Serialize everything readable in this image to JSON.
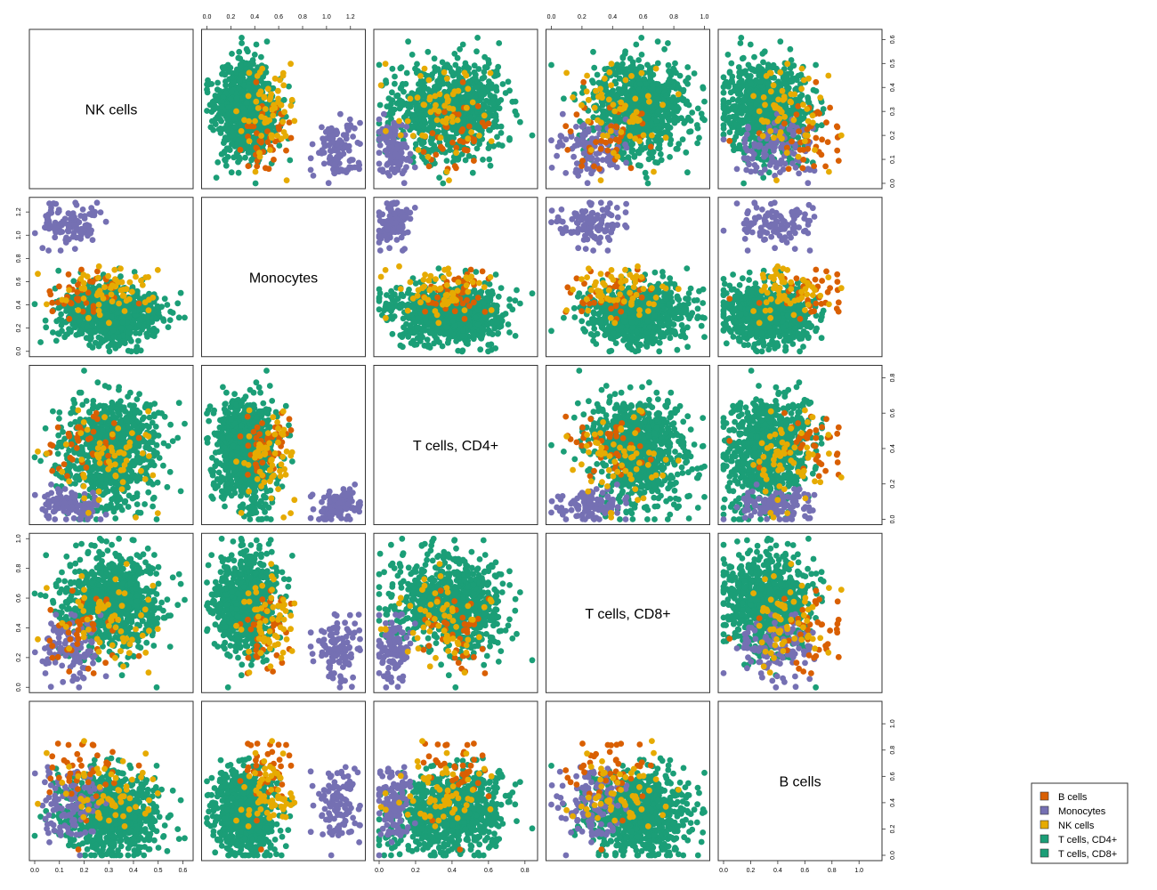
{
  "chart_data": {
    "type": "scatter",
    "title": "",
    "variables": [
      "NK cells",
      "Monocytes",
      "T cells, CD4+",
      "T cells, CD8+",
      "B cells"
    ],
    "ranges": {
      "NK cells": [
        0,
        0.62
      ],
      "Monocytes": [
        0,
        1.28
      ],
      "T cells, CD4+": [
        0,
        0.84
      ],
      "T cells, CD8+": [
        0,
        1.0
      ],
      "B cells": [
        0,
        1.13
      ]
    },
    "axes": {
      "top": [
        {
          "variable": "Monocytes",
          "ticks": [
            "0.0",
            "0.2",
            "0.4",
            "0.6",
            "0.8",
            "1.0",
            "1.2"
          ]
        },
        {
          "variable": "T cells, CD8+",
          "ticks": [
            "0.0",
            "0.2",
            "0.4",
            "0.6",
            "0.8",
            "1.0"
          ]
        }
      ],
      "bottom": [
        {
          "variable": "NK cells",
          "ticks": [
            "0.0",
            "0.1",
            "0.2",
            "0.3",
            "0.4",
            "0.5",
            "0.6"
          ]
        },
        {
          "variable": "T cells, CD4+",
          "ticks": [
            "0.0",
            "0.2",
            "0.4",
            "0.6",
            "0.8"
          ]
        },
        {
          "variable": "B cells",
          "ticks": [
            "0.0",
            "0.2",
            "0.4",
            "0.6",
            "0.8",
            "1.0"
          ]
        }
      ],
      "left": [
        {
          "variable": "Monocytes",
          "ticks": [
            "0.0",
            "0.2",
            "0.4",
            "0.6",
            "0.8",
            "1.0",
            "1.2"
          ]
        },
        {
          "variable": "T cells, CD8+",
          "ticks": [
            "0.0",
            "0.2",
            "0.4",
            "0.6",
            "0.8",
            "1.0"
          ]
        }
      ],
      "right": [
        {
          "variable": "NK cells",
          "ticks": [
            "0.0",
            "0.1",
            "0.2",
            "0.3",
            "0.4",
            "0.5",
            "0.6"
          ]
        },
        {
          "variable": "T cells, CD4+",
          "ticks": [
            "0.0",
            "0.2",
            "0.4",
            "0.6",
            "0.8"
          ]
        },
        {
          "variable": "B cells",
          "ticks": [
            "0.0",
            "0.2",
            "0.4",
            "0.6",
            "0.8",
            "1.0"
          ]
        }
      ]
    },
    "groups": [
      {
        "name": "B cells",
        "color": "#D95F02",
        "center": {
          "NK cells": 0.2,
          "Monocytes": 0.5,
          "T cells, CD4+": 0.42,
          "T cells, CD8+": 0.38,
          "B cells": 0.65
        },
        "spread": {
          "NK cells": 0.08,
          "Monocytes": 0.12,
          "T cells, CD4+": 0.12,
          "T cells, CD8+": 0.15,
          "B cells": 0.15
        }
      },
      {
        "name": "Monocytes",
        "color": "#7570B3",
        "center": {
          "NK cells": 0.15,
          "Monocytes": 1.1,
          "T cells, CD4+": 0.08,
          "T cells, CD8+": 0.25,
          "B cells": 0.38
        },
        "spread": {
          "NK cells": 0.06,
          "Monocytes": 0.1,
          "T cells, CD4+": 0.05,
          "T cells, CD8+": 0.1,
          "B cells": 0.15
        }
      },
      {
        "name": "NK cells",
        "color": "#E6AB02",
        "center": {
          "NK cells": 0.3,
          "Monocytes": 0.52,
          "T cells, CD4+": 0.35,
          "T cells, CD8+": 0.45,
          "B cells": 0.45
        },
        "spread": {
          "NK cells": 0.1,
          "Monocytes": 0.1,
          "T cells, CD4+": 0.15,
          "T cells, CD8+": 0.15,
          "B cells": 0.15
        }
      },
      {
        "name": "T cells, CD4+",
        "color": "#1B9E77",
        "center": {
          "NK cells": 0.32,
          "Monocytes": 0.3,
          "T cells, CD4+": 0.48,
          "T cells, CD8+": 0.55,
          "B cells": 0.35
        },
        "spread": {
          "NK cells": 0.1,
          "Monocytes": 0.12,
          "T cells, CD4+": 0.12,
          "T cells, CD8+": 0.15,
          "B cells": 0.15
        }
      },
      {
        "name": "T cells, CD8+",
        "color": "#1B9E77",
        "center": {
          "NK cells": 0.3,
          "Monocytes": 0.35,
          "T cells, CD4+": 0.3,
          "T cells, CD8+": 0.6,
          "B cells": 0.3
        },
        "spread": {
          "NK cells": 0.1,
          "Monocytes": 0.12,
          "T cells, CD4+": 0.15,
          "T cells, CD8+": 0.15,
          "B cells": 0.15
        }
      }
    ],
    "legend": {
      "position": "bottom-right",
      "entries": [
        {
          "label": "B cells",
          "color": "#D95F02"
        },
        {
          "label": "Monocytes",
          "color": "#7570B3"
        },
        {
          "label": "NK cells",
          "color": "#E6AB02"
        },
        {
          "label": "T cells, CD4+",
          "color": "#1B9E77"
        },
        {
          "label": "T cells, CD8+",
          "color": "#1B9E77"
        }
      ]
    }
  }
}
